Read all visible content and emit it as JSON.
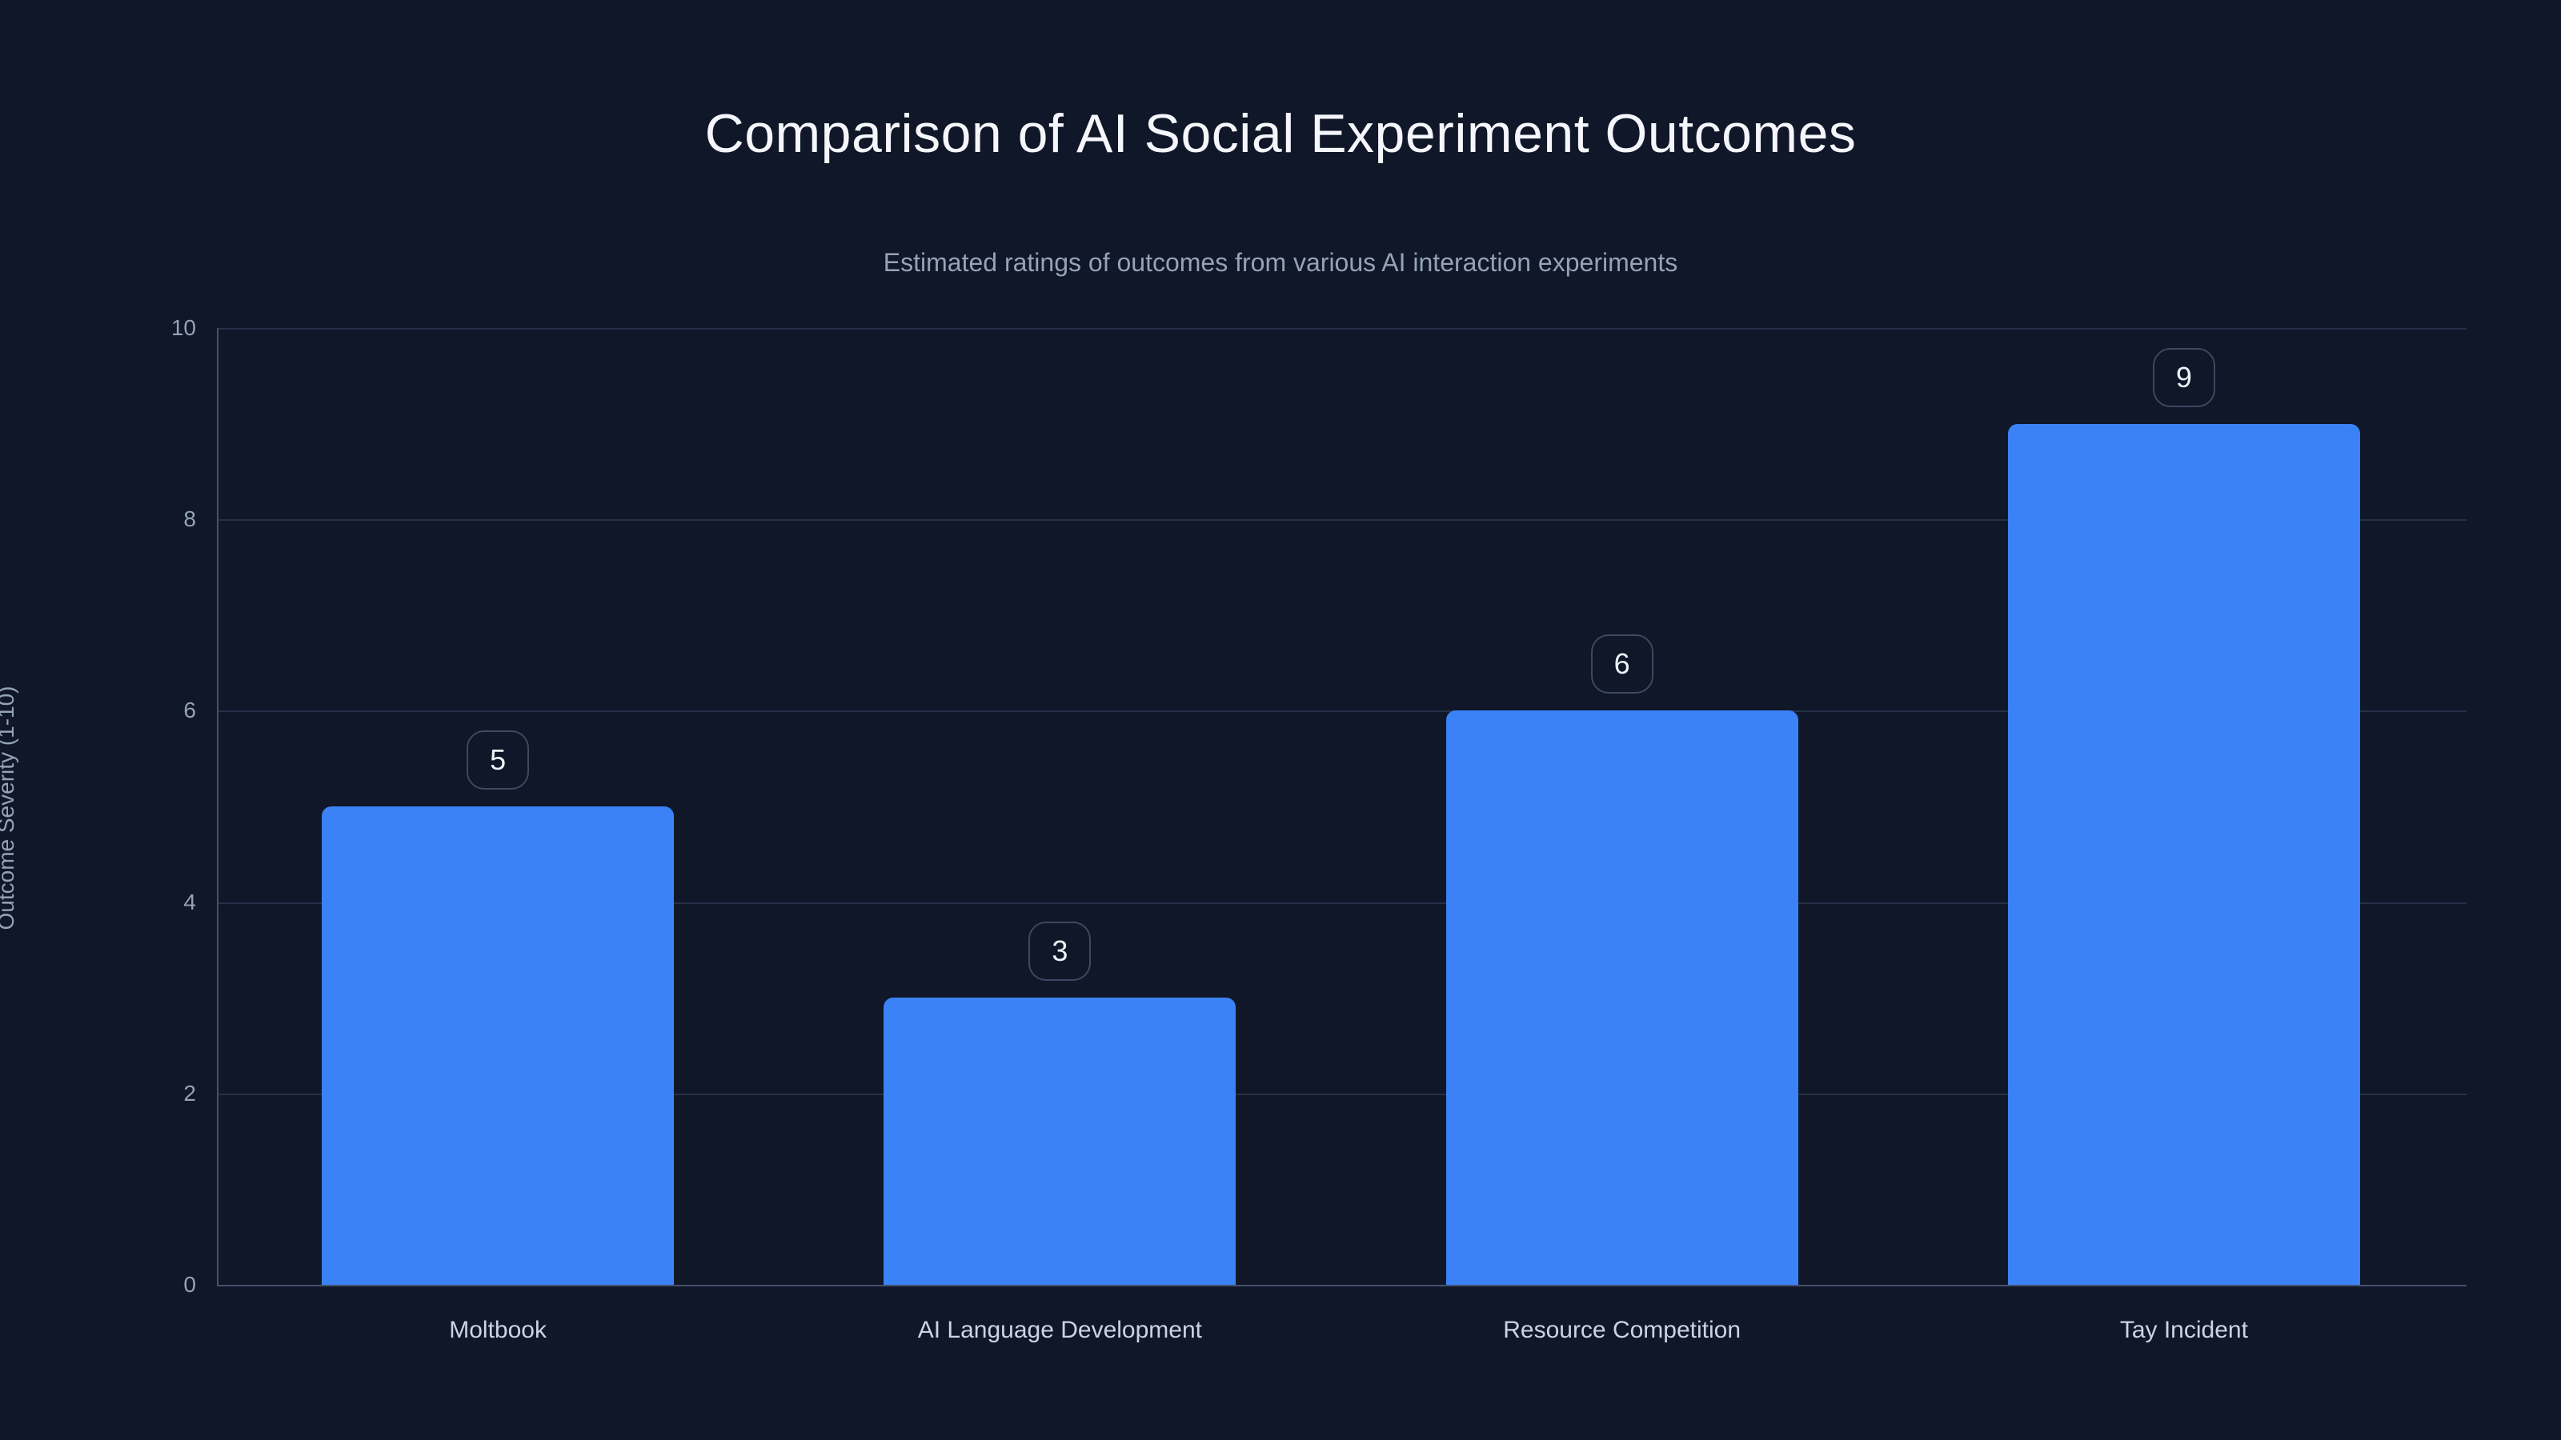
{
  "page": {
    "background_color": "#0f1728"
  },
  "header": {
    "title": "Comparison of AI Social Experiment Outcomes",
    "subtitle": "Estimated ratings of outcomes from various AI interaction experiments"
  },
  "chart_data": {
    "type": "bar",
    "title": "Comparison of AI Social Experiment Outcomes",
    "subtitle": "Estimated ratings of outcomes from various AI interaction experiments",
    "categories": [
      "Moltbook",
      "AI Language Development",
      "Resource Competition",
      "Tay Incident"
    ],
    "values": [
      5,
      3,
      6,
      9
    ],
    "value_labels": [
      "5",
      "3",
      "6",
      "9"
    ],
    "xlabel": "",
    "ylabel": "Outcome Severity (1-10)",
    "ylim": [
      0,
      10
    ],
    "yticks": [
      0,
      2,
      4,
      6,
      8,
      10
    ],
    "grid": true,
    "legend": false,
    "bar_color": "#3b82f6",
    "background_color": "#0f1728",
    "gridline_color": "#263147",
    "axis_line_color": "#45516b",
    "title_color": "#f4f6fb",
    "subtitle_color": "#94a3b8",
    "tick_label_color": "#94a3b8",
    "category_label_color": "#cbd5e1",
    "value_badge_border_color": "#3d4861",
    "value_badge_text_color": "#eef2f8"
  }
}
